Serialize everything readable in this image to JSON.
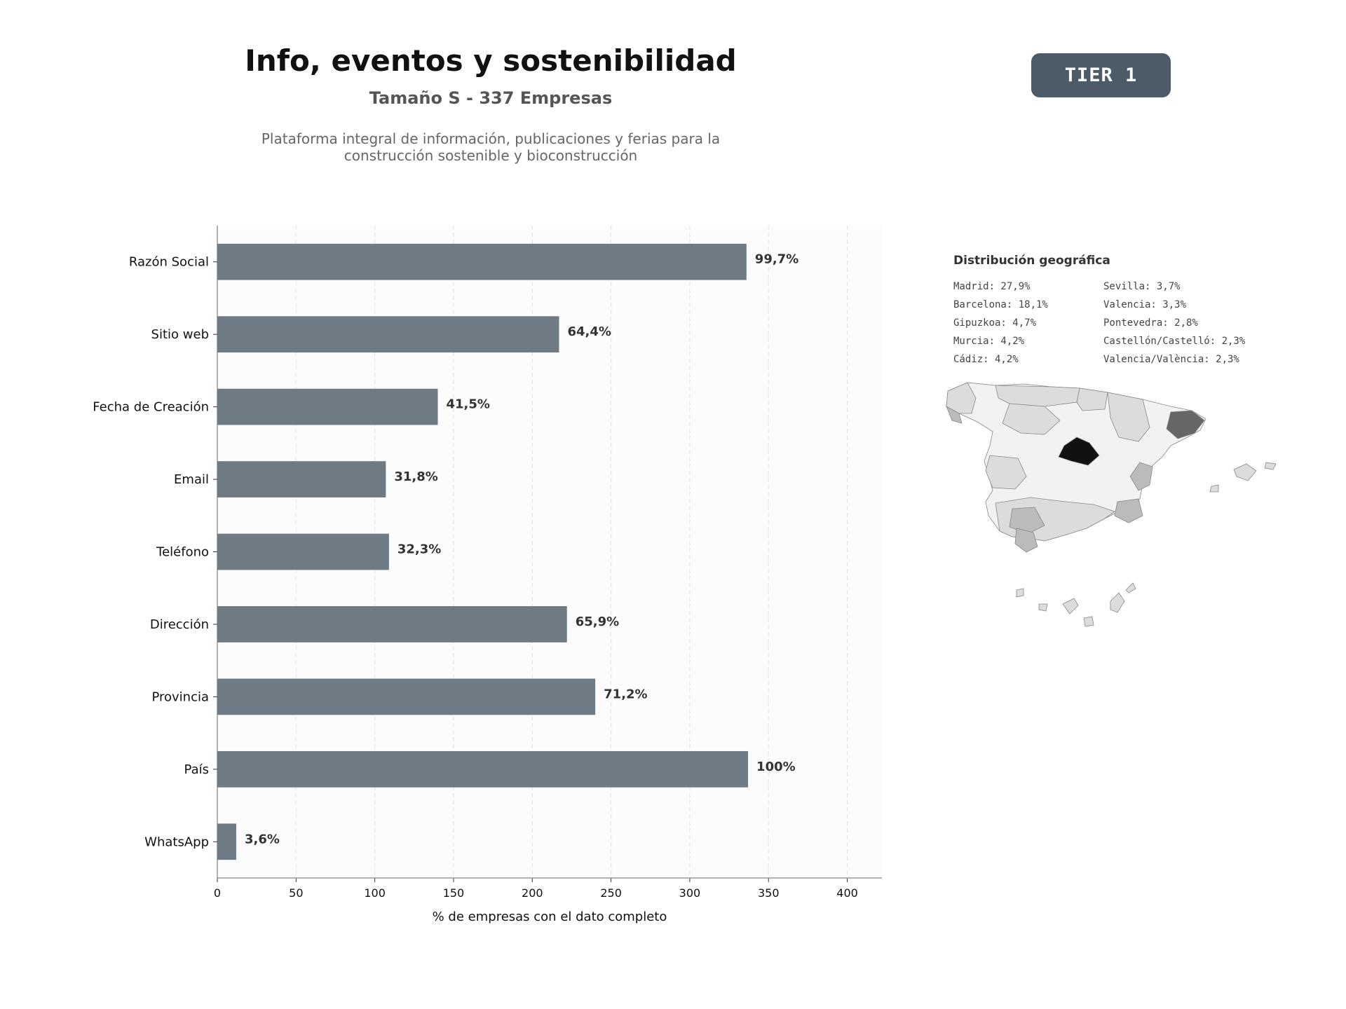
{
  "header": {
    "title": "Info, eventos y sostenibilidad",
    "subtitle": "Tamaño S - 337 Empresas",
    "description_line1": "Plataforma integral de información, publicaciones y ferias para la",
    "description_line2": "construcción sostenible y bioconstrucción",
    "tier": "TIER 1"
  },
  "chart_data": {
    "type": "bar",
    "orientation": "horizontal",
    "categories": [
      "Razón Social",
      "Sitio web",
      "Fecha de Creación",
      "Email",
      "Teléfono",
      "Dirección",
      "Provincia",
      "País",
      "WhatsApp"
    ],
    "values": [
      336,
      217,
      140,
      107,
      109,
      222,
      240,
      337,
      12
    ],
    "data_labels": [
      "99,7%",
      "64,4%",
      "41,5%",
      "31,8%",
      "32,3%",
      "65,9%",
      "71,2%",
      "100%",
      "3,6%"
    ],
    "xlabel": "% de empresas con el dato completo",
    "ylabel": "",
    "xlim": [
      0,
      422
    ],
    "xticks": [
      0,
      50,
      100,
      150,
      200,
      250,
      300,
      350,
      400
    ],
    "grid": "vertical dashed",
    "colors": {
      "bar": "#6e7a84",
      "background": "#fcfcfc"
    }
  },
  "geo": {
    "title": "Distribución geográfica",
    "items_left": [
      "Madrid: 27,9%",
      "Barcelona: 18,1%",
      "Gipuzkoa: 4,7%",
      "Murcia: 4,2%",
      "Cádiz: 4,2%"
    ],
    "items_right": [
      "Sevilla: 3,7%",
      "Valencia: 3,3%",
      "Pontevedra: 2,8%",
      "Castellón/Castelló: 2,3%",
      "Valencia/València: 2,3%"
    ],
    "colors": {
      "max": "#111111",
      "high": "#666666",
      "mid": "#bbbbbb",
      "low": "#dcdcdc",
      "min": "#f2f2f2"
    }
  }
}
